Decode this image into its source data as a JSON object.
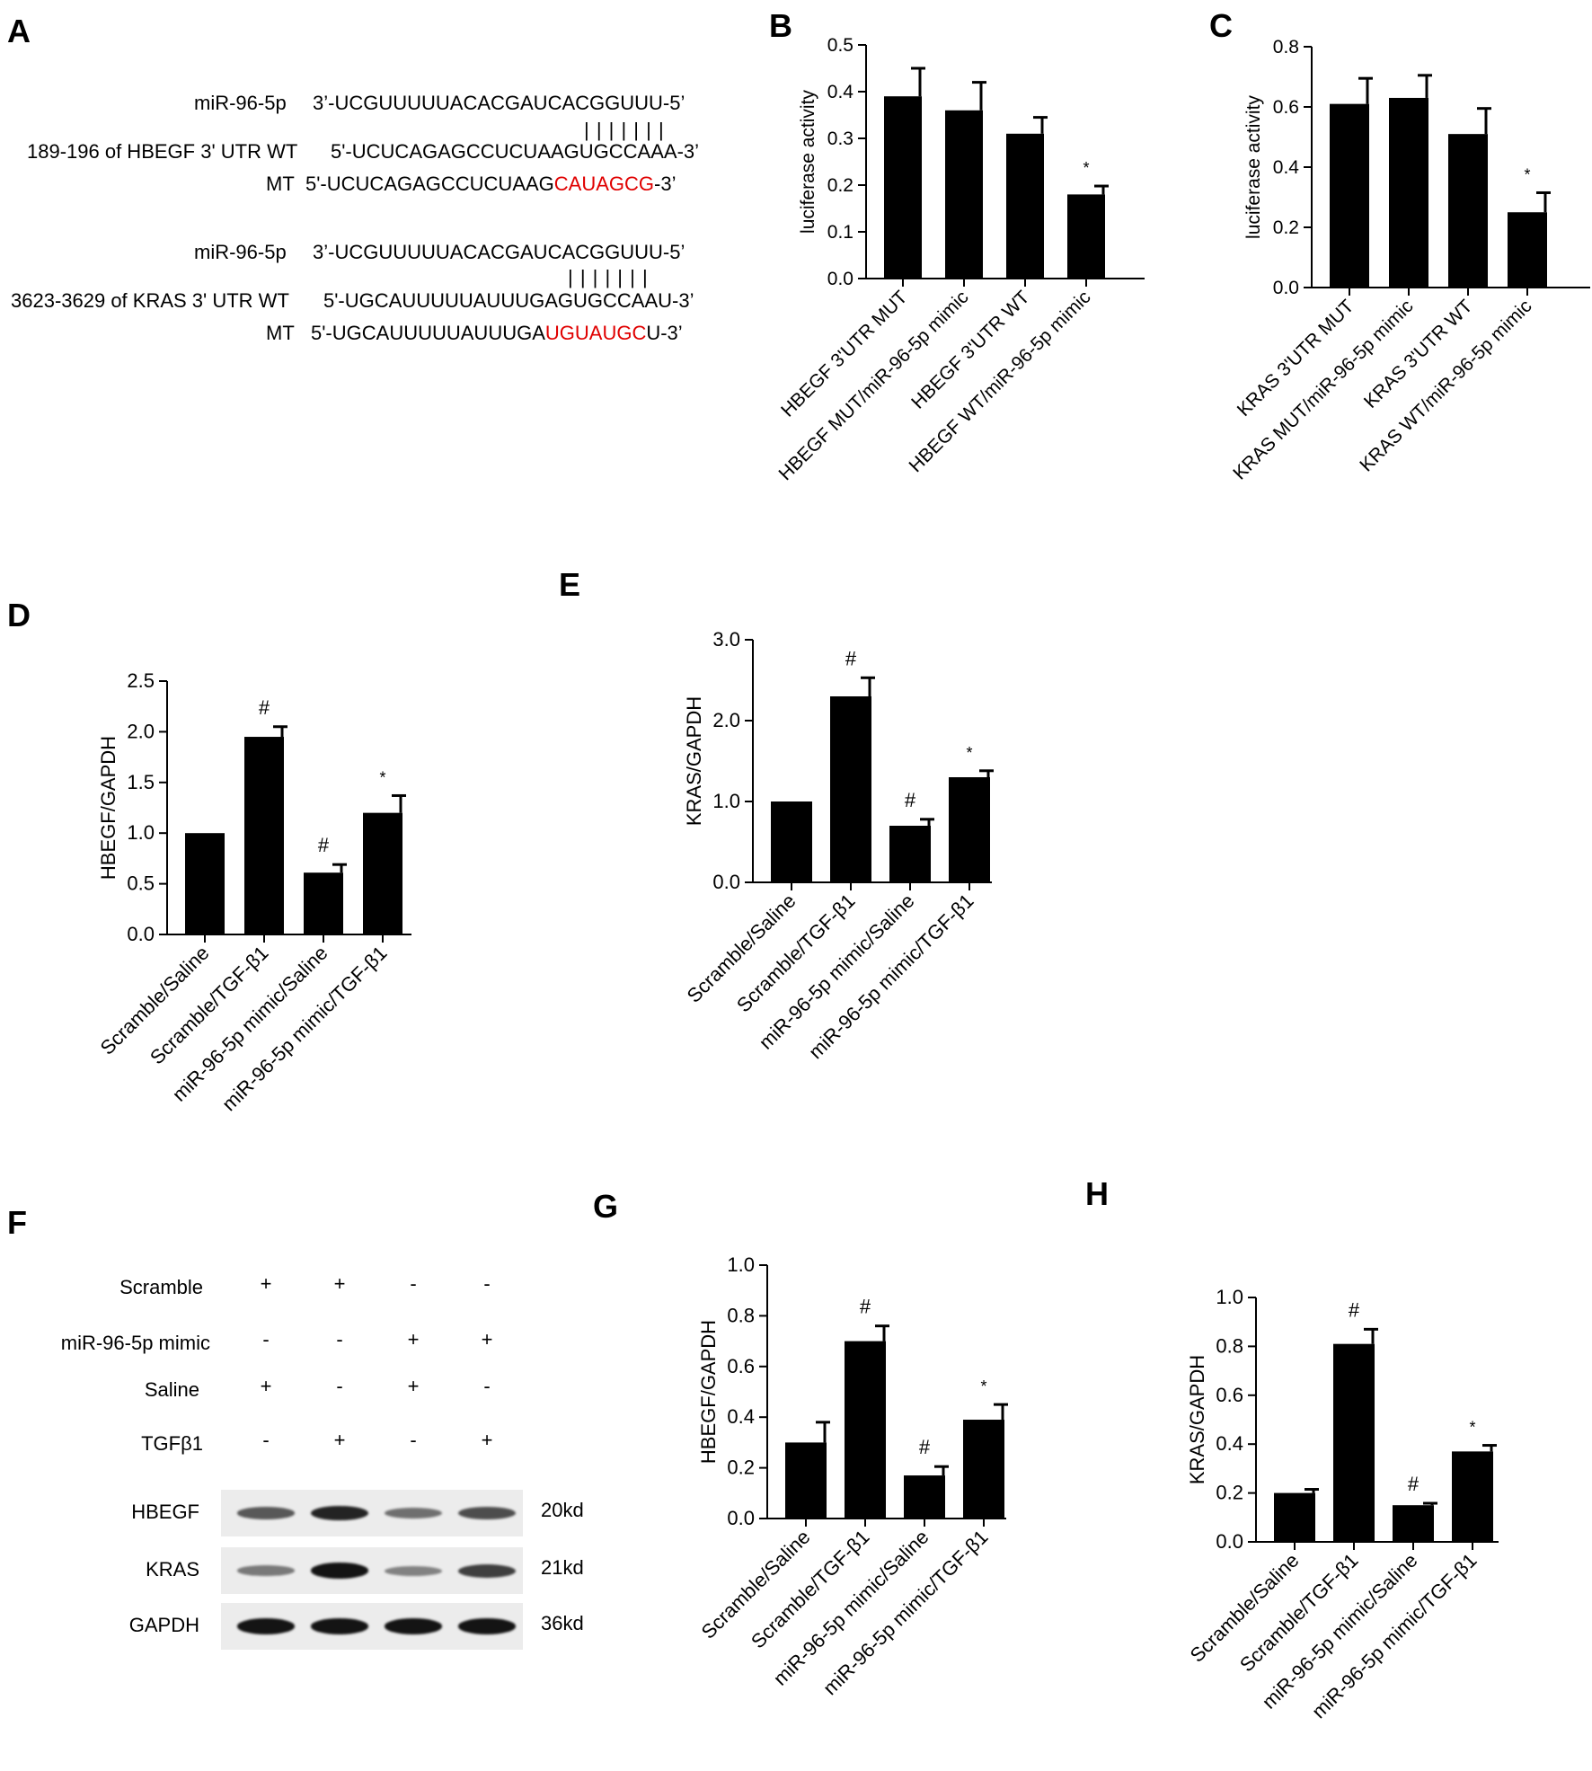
{
  "panels": {
    "A": "A",
    "B": "B",
    "C": "C",
    "D": "D",
    "E": "E",
    "F": "F",
    "G": "G",
    "H": "H"
  },
  "panel_a": {
    "hbegf": {
      "mir_label": "miR-96-5p",
      "mir_seq": "3’-UCGUUUUUACACGAUCACGGUUU-5’",
      "pairs": "| | | | | | |",
      "wt_label": "189-196 of HBEGF 3' UTR WT",
      "wt_seq": "5'-UCUCAGAGCCUCUAAGUGCCAAA-3’",
      "mt_label": "MT",
      "mt_seq_prefix": "5'-UCUCAGAGCCUCUAAG",
      "mt_seq_mut": "CAUAGCG",
      "mt_seq_suffix": "-3’"
    },
    "kras": {
      "mir_label": "miR-96-5p",
      "mir_seq": "3’-UCGUUUUUACACGAUCACGGUUU-5’",
      "pairs": "| | | | | | |",
      "wt_label": "3623-3629 of KRAS 3' UTR WT",
      "wt_seq": "5'-UGCAUUUUUAUUUGAGUGCCAAU-3’",
      "mt_label": "MT",
      "mt_seq_prefix": "5'-UGCAUUUUUAUUUGA",
      "mt_seq_mut": "UGUAUGC",
      "mt_seq_suffix": "U-3’"
    }
  },
  "blot": {
    "conditions": [
      {
        "label": "Scramble",
        "signs": [
          "+",
          "+",
          "-",
          "-"
        ]
      },
      {
        "label": "miR-96-5p mimic",
        "signs": [
          "-",
          "-",
          "+",
          "+"
        ]
      },
      {
        "label": "Saline",
        "signs": [
          "+",
          "-",
          "+",
          "-"
        ]
      },
      {
        "label": "TGFβ1",
        "signs": [
          "-",
          "+",
          "-",
          "+"
        ]
      }
    ],
    "bands": [
      {
        "label": "HBEGF",
        "size": "20kd",
        "intensity": [
          0.55,
          0.85,
          0.4,
          0.6
        ]
      },
      {
        "label": "KRAS",
        "size": "21kd",
        "intensity": [
          0.35,
          0.95,
          0.3,
          0.7
        ]
      },
      {
        "label": "GAPDH",
        "size": "36kd",
        "intensity": [
          0.95,
          0.95,
          0.95,
          0.95
        ]
      }
    ]
  },
  "chart_data": [
    {
      "id": "B",
      "type": "bar",
      "categories": [
        "HBEGF 3'UTR MUT",
        "HBEGF MUT/miR-96-5p mimic",
        "HBEGF 3'UTR WT",
        "HBEGF WT/miR-96-5p mimic"
      ],
      "values": [
        0.39,
        0.36,
        0.31,
        0.18
      ],
      "errors": [
        0.06,
        0.06,
        0.035,
        0.018
      ],
      "annotations": [
        "",
        "",
        "",
        "*"
      ],
      "ylabel": "luciferase activity",
      "ylim": [
        0,
        0.5
      ],
      "yticks": [
        "0.0",
        "0.1",
        "0.2",
        "0.3",
        "0.4",
        "0.5"
      ]
    },
    {
      "id": "C",
      "type": "bar",
      "categories": [
        "KRAS 3'UTR MUT",
        "KRAS MUT/miR-96-5p mimic",
        "KRAS 3'UTR WT",
        "KRAS WT/miR-96-5p mimic"
      ],
      "values": [
        0.61,
        0.63,
        0.51,
        0.25
      ],
      "errors": [
        0.085,
        0.075,
        0.085,
        0.065
      ],
      "annotations": [
        "",
        "",
        "",
        "*"
      ],
      "ylabel": "luciferase activity",
      "ylim": [
        0,
        0.8
      ],
      "yticks": [
        "0.0",
        "0.2",
        "0.4",
        "0.6",
        "0.8"
      ]
    },
    {
      "id": "D",
      "type": "bar",
      "categories": [
        "Scramble/Saline",
        "Scramble/TGF-β1",
        "miR-96-5p mimic/Saline",
        "miR-96-5p mimic/TGF-β1"
      ],
      "values": [
        1.0,
        1.95,
        0.61,
        1.2
      ],
      "errors": [
        0,
        0.1,
        0.08,
        0.17
      ],
      "annotations": [
        "",
        "#",
        "#",
        "*"
      ],
      "ylabel": "HBEGF/GAPDH",
      "ylim": [
        0,
        2.5
      ],
      "yticks": [
        "0.0",
        "0.5",
        "1.0",
        "1.5",
        "2.0",
        "2.5"
      ]
    },
    {
      "id": "E",
      "type": "bar",
      "categories": [
        "Scramble/Saline",
        "Scramble/TGF-β1",
        "miR-96-5p mimic/Saline",
        "miR-96-5p mimic/TGF-β1"
      ],
      "values": [
        1.0,
        2.3,
        0.7,
        1.3
      ],
      "errors": [
        0,
        0.23,
        0.08,
        0.08
      ],
      "annotations": [
        "",
        "#",
        "#",
        "*"
      ],
      "ylabel": "KRAS/GAPDH",
      "ylim": [
        0,
        3.0
      ],
      "yticks": [
        "0.0",
        "1.0",
        "2.0",
        "3.0"
      ]
    },
    {
      "id": "G",
      "type": "bar",
      "categories": [
        "Scramble/Saline",
        "Scramble/TGF-β1",
        "miR-96-5p mimic/Saline",
        "miR-96-5p mimic/TGF-β1"
      ],
      "values": [
        0.3,
        0.7,
        0.17,
        0.39
      ],
      "errors": [
        0.08,
        0.06,
        0.035,
        0.06
      ],
      "annotations": [
        "",
        "#",
        "#",
        "*"
      ],
      "ylabel": "HBEGF/GAPDH",
      "ylim": [
        0,
        1.0
      ],
      "yticks": [
        "0.0",
        "0.2",
        "0.4",
        "0.6",
        "0.8",
        "1.0"
      ]
    },
    {
      "id": "H",
      "type": "bar",
      "categories": [
        "Scramble/Saline",
        "Scramble/TGF-β1",
        "miR-96-5p mimic/Saline",
        "miR-96-5p mimic/TGF-β1"
      ],
      "values": [
        0.2,
        0.81,
        0.15,
        0.37
      ],
      "errors": [
        0.015,
        0.06,
        0.008,
        0.025
      ],
      "annotations": [
        "",
        "#",
        "#",
        "*"
      ],
      "ylabel": "KRAS/GAPDH",
      "ylim": [
        0,
        1.0
      ],
      "yticks": [
        "0.0",
        "0.2",
        "0.4",
        "0.6",
        "0.8",
        "1.0"
      ]
    }
  ]
}
